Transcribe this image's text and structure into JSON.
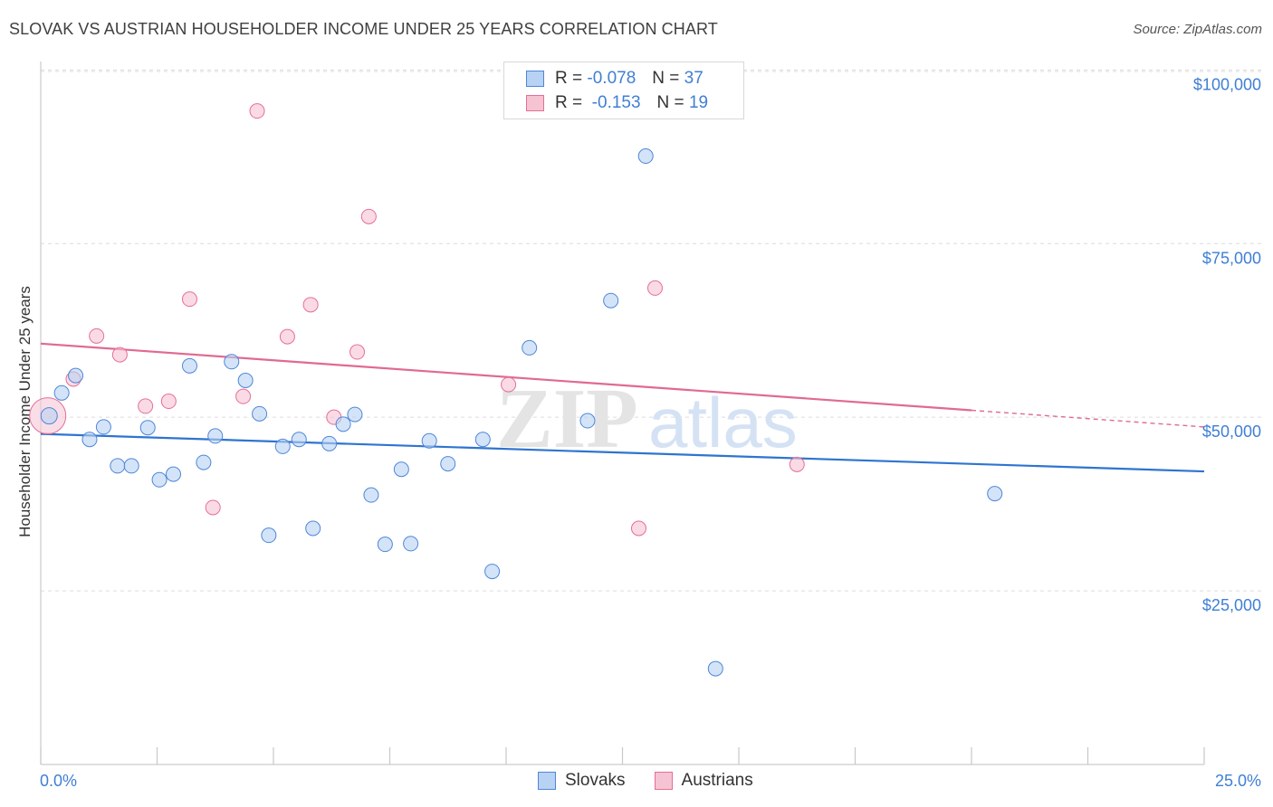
{
  "title": "SLOVAK VS AUSTRIAN HOUSEHOLDER INCOME UNDER 25 YEARS CORRELATION CHART",
  "source": "Source: ZipAtlas.com",
  "watermark": {
    "zip": "ZIP",
    "atlas": "atlas"
  },
  "legend": {
    "rows": [
      {
        "r_label": "R =",
        "r_value": "-0.078",
        "n_label": "N =",
        "n_value": "37"
      },
      {
        "r_label": "R =",
        "r_value": "-0.153",
        "n_label": "N =",
        "n_value": "19"
      }
    ]
  },
  "colors": {
    "slovak": "#4f86d8",
    "slovak_fill": "#b8d2f3",
    "austrian": "#e56f95",
    "austrian_fill": "#f6c3d3",
    "axis_text": "#3f7fd4"
  },
  "chart_data": {
    "type": "scatter",
    "title": "SLOVAK VS AUSTRIAN HOUSEHOLDER INCOME UNDER 25 YEARS CORRELATION CHART",
    "xlabel": "",
    "ylabel": "Householder Income Under 25 years",
    "x_tick_labels": [
      "0.0%",
      "25.0%"
    ],
    "y_tick_labels": [
      "$25,000",
      "$50,000",
      "$75,000",
      "$100,000"
    ],
    "xlim": [
      0,
      25
    ],
    "ylim": [
      0,
      102000
    ],
    "grid": true,
    "legend_placement": "top-center",
    "series": [
      {
        "name": "Slovaks",
        "points": [
          [
            0.18,
            50200
          ],
          [
            0.45,
            53500
          ],
          [
            0.75,
            56000
          ],
          [
            1.05,
            46800
          ],
          [
            1.35,
            48600
          ],
          [
            1.65,
            43000
          ],
          [
            1.95,
            43000
          ],
          [
            2.3,
            48500
          ],
          [
            2.55,
            41000
          ],
          [
            2.85,
            41800
          ],
          [
            3.2,
            57400
          ],
          [
            3.5,
            43500
          ],
          [
            3.75,
            47300
          ],
          [
            4.1,
            58000
          ],
          [
            4.4,
            55300
          ],
          [
            4.7,
            50500
          ],
          [
            4.9,
            33000
          ],
          [
            5.2,
            45800
          ],
          [
            5.55,
            46800
          ],
          [
            5.85,
            34000
          ],
          [
            6.2,
            46200
          ],
          [
            6.5,
            49000
          ],
          [
            6.75,
            50400
          ],
          [
            7.1,
            38800
          ],
          [
            7.4,
            31700
          ],
          [
            7.75,
            42500
          ],
          [
            7.95,
            31800
          ],
          [
            8.35,
            46600
          ],
          [
            8.75,
            43300
          ],
          [
            9.5,
            46800
          ],
          [
            9.7,
            27800
          ],
          [
            10.5,
            60000
          ],
          [
            11.75,
            49500
          ],
          [
            12.25,
            66800
          ],
          [
            13.0,
            87600
          ],
          [
            14.5,
            13800
          ],
          [
            20.5,
            39000
          ]
        ],
        "trend": {
          "x": [
            0,
            25
          ],
          "y": [
            47600,
            42200
          ]
        }
      },
      {
        "name": "Austrians",
        "points": [
          [
            0.15,
            50200
          ],
          [
            0.7,
            55500
          ],
          [
            1.2,
            61700
          ],
          [
            1.7,
            59000
          ],
          [
            2.25,
            51600
          ],
          [
            2.75,
            52300
          ],
          [
            3.2,
            67000
          ],
          [
            3.7,
            37000
          ],
          [
            4.35,
            53000
          ],
          [
            4.65,
            94100
          ],
          [
            5.3,
            61600
          ],
          [
            5.8,
            66200
          ],
          [
            6.3,
            50000
          ],
          [
            6.8,
            59400
          ],
          [
            7.05,
            78900
          ],
          [
            10.05,
            54700
          ],
          [
            12.85,
            34000
          ],
          [
            13.2,
            68600
          ],
          [
            16.25,
            43200
          ]
        ],
        "trend": {
          "x": [
            0,
            20
          ],
          "y": [
            60600,
            51000
          ]
        },
        "trend_dashed": {
          "x": [
            20,
            25
          ],
          "y": [
            51000,
            48600
          ]
        }
      }
    ]
  },
  "bottom_legend": [
    {
      "label": "Slovaks"
    },
    {
      "label": "Austrians"
    }
  ]
}
